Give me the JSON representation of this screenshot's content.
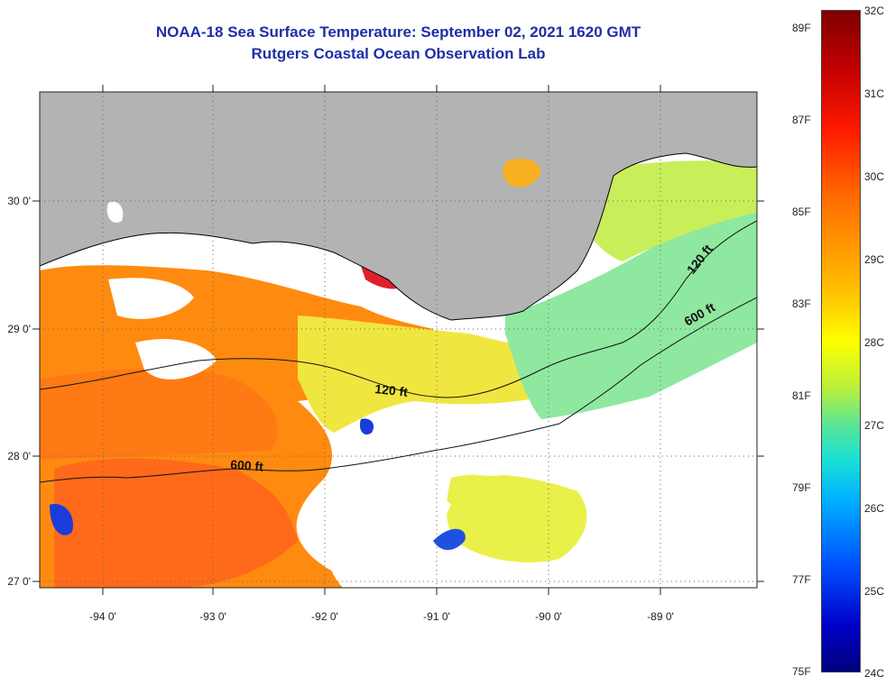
{
  "header": {
    "title": "NOAA-18 Sea Surface Temperature:  September 02, 2021 1620 GMT",
    "subtitle": "Rutgers Coastal Ocean Observation Lab"
  },
  "axes": {
    "lon_labels": [
      "-94 0'",
      "-93 0'",
      "-92 0'",
      "-91 0'",
      "-90 0'",
      "-89 0'"
    ],
    "lat_labels": [
      "30 0'",
      "29 0'",
      "28 0'",
      "27 0'"
    ]
  },
  "contours": [
    {
      "label": "120 ft"
    },
    {
      "label": "600 ft"
    },
    {
      "label": "120 ft"
    },
    {
      "label": "600 ft"
    }
  ],
  "colorbar": {
    "fahrenheit": [
      "89F",
      "87F",
      "85F",
      "83F",
      "81F",
      "79F",
      "77F",
      "75F"
    ],
    "celsius": [
      "32C",
      "31C",
      "30C",
      "29C",
      "28C",
      "27C",
      "26C",
      "25C",
      "24C"
    ]
  },
  "colors": {
    "land": "#b3b3b3",
    "title": "#1f2fa8",
    "warm": "#ff7f00",
    "mid": "#e8f040",
    "cool": "#7fe8a8"
  }
}
